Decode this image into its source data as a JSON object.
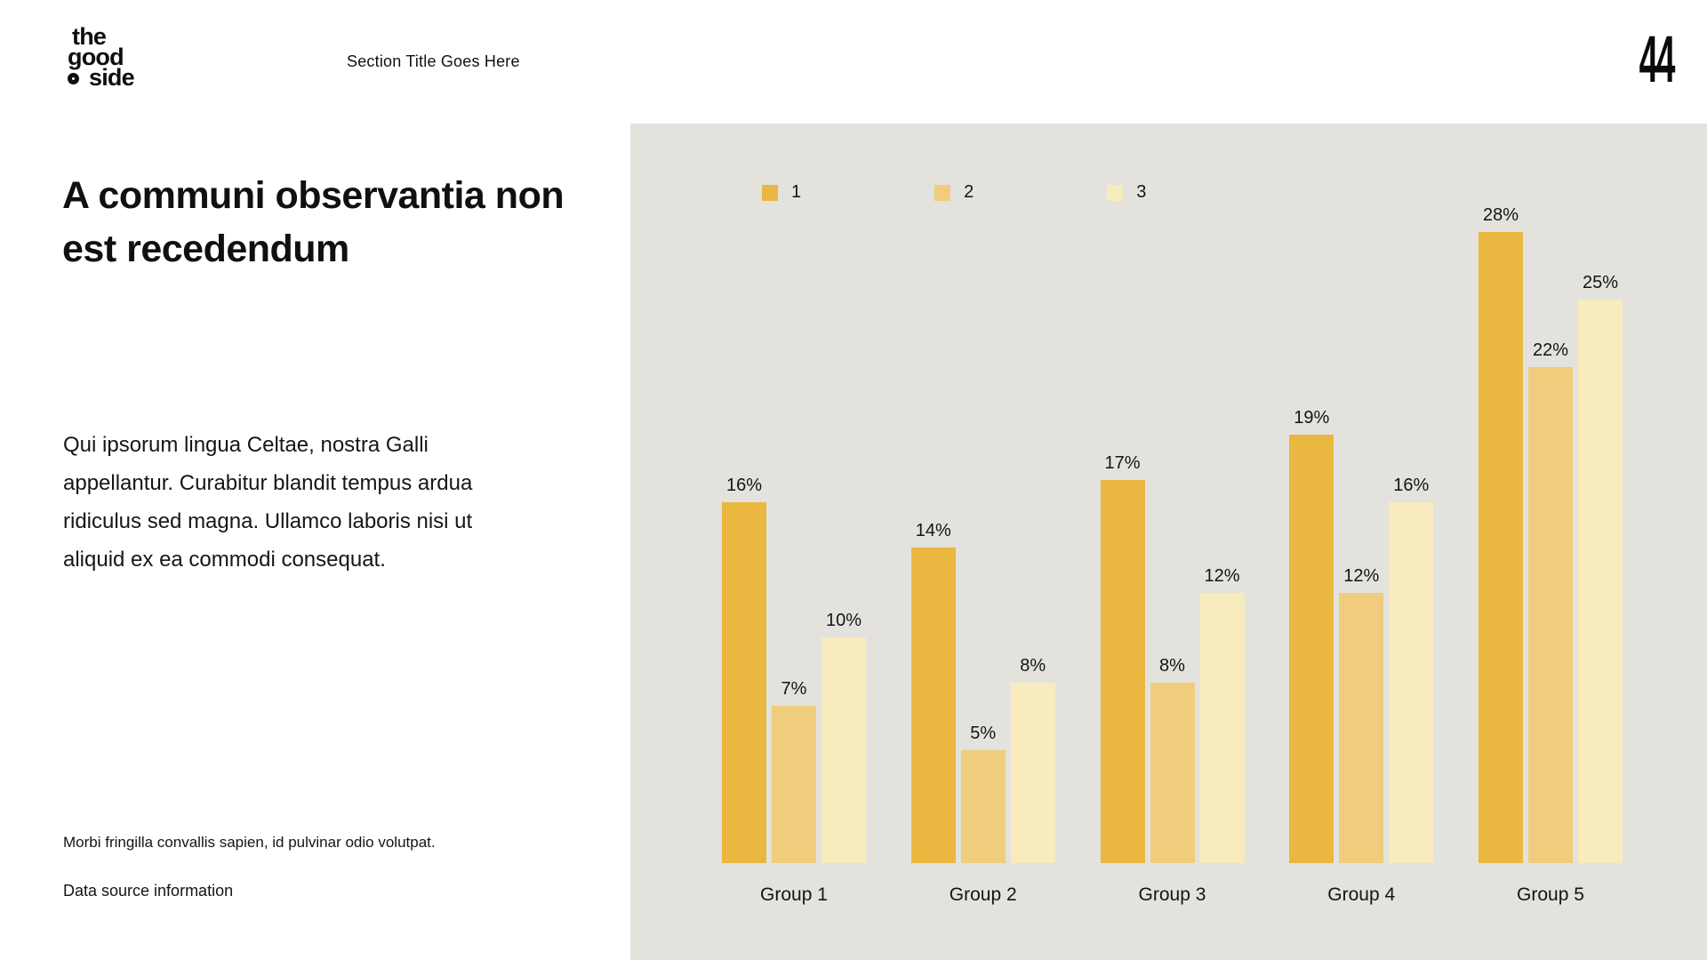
{
  "header": {
    "logo_lines": [
      "the",
      "good",
      "side"
    ],
    "section_title": "Section Title Goes Here",
    "page_number": "44"
  },
  "content": {
    "title": "A communi observantia non est recedendum",
    "title_lines": [
      "A communi observantia non",
      "est recedendum"
    ],
    "body": "Qui ipsorum lingua Celtae, nostra Galli appellantur. Curabitur blandit tempus ardua ridiculus sed magna. Ullamco laboris nisi ut aliquid ex ea commodi consequat.",
    "footnote": "Morbi fringilla convallis sapien, id pulvinar odio volutpat.",
    "source": "Data source information"
  },
  "chart_data": {
    "type": "bar",
    "title": "",
    "categories": [
      "Group 1",
      "Group 2",
      "Group 3",
      "Group 4",
      "Group 5"
    ],
    "series": [
      {
        "name": "1",
        "color": "#EAB840",
        "values": [
          16,
          14,
          17,
          19,
          28
        ]
      },
      {
        "name": "2",
        "color": "#EFCD7C",
        "values": [
          7,
          5,
          8,
          12,
          22
        ]
      },
      {
        "name": "3",
        "color": "#F8EBBE",
        "values": [
          10,
          8,
          12,
          16,
          25
        ]
      }
    ],
    "value_suffix": "%",
    "ylim": [
      0,
      30
    ],
    "grid": false,
    "axes_visible": false,
    "legend_position": "top",
    "panel_background": "#E4E2DD",
    "label_color": "#141414"
  }
}
